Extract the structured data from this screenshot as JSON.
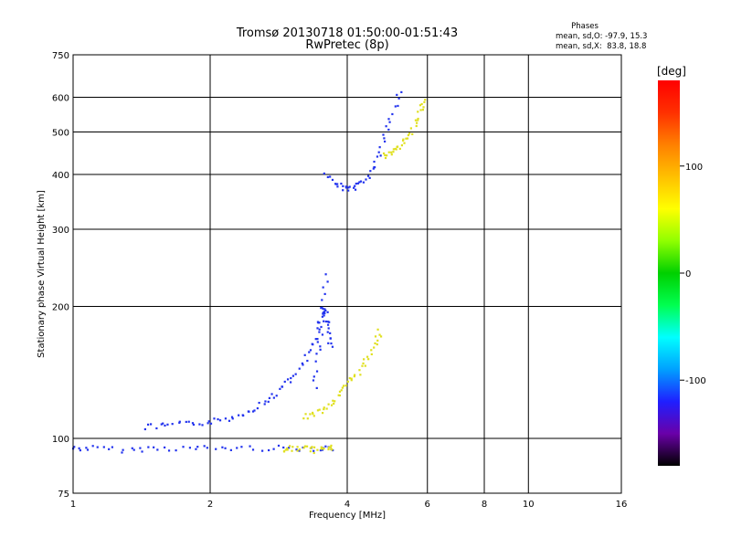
{
  "chart_data": {
    "type": "scatter",
    "title": "Tromsø 20130718 01:50:00-01:51:43",
    "subtitle": "RwPretec (8p)",
    "xlabel": "Frequency [MHz]",
    "ylabel": "Stationary phase Virtual Height [km]",
    "x_scale": "log",
    "y_scale": "log",
    "xlim": [
      1,
      16
    ],
    "ylim": [
      75,
      750
    ],
    "x_ticks": [
      1,
      2,
      4,
      6,
      8,
      10,
      16
    ],
    "x_tick_labels": [
      "1",
      "2",
      "4",
      "6",
      "8",
      "10",
      "16"
    ],
    "y_ticks": [
      75,
      100,
      200,
      300,
      400,
      500,
      600,
      750
    ],
    "y_tick_labels": [
      "75",
      "100",
      "200",
      "300",
      "400",
      "500",
      "600",
      "750"
    ],
    "grid": true,
    "phase_box": {
      "title": "Phases",
      "line_o": "mean, sd,O: -97.9, 15.3",
      "line_x": "mean, sd,X:  83.8, 18.8"
    },
    "colorbar": {
      "label": "[deg]",
      "range": [
        -180,
        180
      ],
      "ticks": [
        100,
        0,
        -100
      ],
      "tick_labels": [
        "100",
        "0",
        "-100"
      ],
      "colors": [
        "#000000",
        "#6a00a8",
        "#1f1fff",
        "#00a0ff",
        "#00ffff",
        "#00ff50",
        "#00d000",
        "#90ff00",
        "#ffff00",
        "#ffc000",
        "#ff8000",
        "#ff3000",
        "#ff0000"
      ]
    },
    "series": [
      {
        "mode": "O",
        "phase_deg": -98,
        "color": "#2233ee",
        "segments": [
          {
            "x": [
              1.0,
              1.1,
              1.3,
              1.5,
              1.8,
              2.1,
              2.5,
              3.0,
              3.5,
              3.7
            ],
            "y": [
              95,
              95,
              94,
              95,
              95,
              95,
              95,
              95,
              95,
              95
            ]
          },
          {
            "x": [
              1.45,
              1.6,
              1.8,
              2.0,
              2.2,
              2.4,
              2.6,
              2.8,
              3.0,
              3.2,
              3.4,
              3.5,
              3.6
            ],
            "y": [
              106,
              107,
              108,
              109,
              111,
              115,
              120,
              127,
              136,
              148,
              165,
              190,
              240
            ]
          },
          {
            "x": [
              3.4,
              3.45,
              3.5,
              3.55,
              3.6,
              3.65,
              3.7
            ],
            "y": [
              130,
              160,
              180,
              200,
              190,
              175,
              160
            ]
          },
          {
            "x": [
              3.6,
              3.8,
              4.0,
              4.2,
              4.4,
              4.6,
              4.8,
              5.0,
              5.2
            ],
            "y": [
              400,
              380,
              370,
              375,
              390,
              420,
              470,
              540,
              620
            ]
          }
        ]
      },
      {
        "mode": "X",
        "phase_deg": 84,
        "color": "#e0e020",
        "segments": [
          {
            "x": [
              2.9,
              3.0,
              3.2,
              3.4,
              3.6,
              3.7
            ],
            "y": [
              94,
              95,
              95,
              94,
              95,
              95
            ]
          },
          {
            "x": [
              3.2,
              3.4,
              3.6,
              3.8,
              4.0,
              4.2,
              4.4,
              4.6,
              4.7
            ],
            "y": [
              112,
              114,
              118,
              124,
              132,
              140,
              150,
              165,
              175
            ]
          },
          {
            "x": [
              4.8,
              5.0,
              5.2,
              5.4,
              5.6,
              5.8,
              5.9
            ],
            "y": [
              440,
              450,
              460,
              480,
              510,
              560,
              600
            ]
          }
        ]
      }
    ]
  }
}
